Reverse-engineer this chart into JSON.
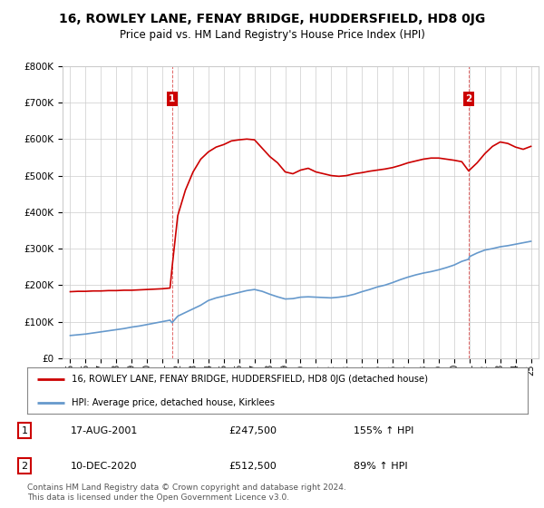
{
  "title": "16, ROWLEY LANE, FENAY BRIDGE, HUDDERSFIELD, HD8 0JG",
  "subtitle": "Price paid vs. HM Land Registry's House Price Index (HPI)",
  "title_fontsize": 10,
  "subtitle_fontsize": 8.5,
  "ylim": [
    0,
    800000
  ],
  "yticks": [
    0,
    100000,
    200000,
    300000,
    400000,
    500000,
    600000,
    700000,
    800000
  ],
  "ytick_labels": [
    "£0",
    "£100K",
    "£200K",
    "£300K",
    "£400K",
    "£500K",
    "£600K",
    "£700K",
    "£800K"
  ],
  "xlim_start": 1994.5,
  "xlim_end": 2025.5,
  "sale1_year": 2001.63,
  "sale1_price": 247500,
  "sale2_year": 2020.95,
  "sale2_price": 512500,
  "red_color": "#cc0000",
  "blue_color": "#6699cc",
  "legend_label_red": "16, ROWLEY LANE, FENAY BRIDGE, HUDDERSFIELD, HD8 0JG (detached house)",
  "legend_label_blue": "HPI: Average price, detached house, Kirklees",
  "annotation1_num": "1",
  "annotation1_date": "17-AUG-2001",
  "annotation1_price": "£247,500",
  "annotation1_hpi": "155% ↑ HPI",
  "annotation2_num": "2",
  "annotation2_date": "10-DEC-2020",
  "annotation2_price": "£512,500",
  "annotation2_hpi": "89% ↑ HPI",
  "footer": "Contains HM Land Registry data © Crown copyright and database right 2024.\nThis data is licensed under the Open Government Licence v3.0.",
  "bg_color": "#ffffff",
  "grid_color": "#cccccc",
  "hpi_years": [
    1995.0,
    1995.5,
    1996.0,
    1996.5,
    1997.0,
    1997.5,
    1998.0,
    1998.5,
    1999.0,
    1999.5,
    2000.0,
    2000.5,
    2001.0,
    2001.5,
    2001.63,
    2002.0,
    2002.5,
    2003.0,
    2003.5,
    2004.0,
    2004.5,
    2005.0,
    2005.5,
    2006.0,
    2006.5,
    2007.0,
    2007.5,
    2008.0,
    2008.5,
    2009.0,
    2009.5,
    2010.0,
    2010.5,
    2011.0,
    2011.5,
    2012.0,
    2012.5,
    2013.0,
    2013.5,
    2014.0,
    2014.5,
    2015.0,
    2015.5,
    2016.0,
    2016.5,
    2017.0,
    2017.5,
    2018.0,
    2018.5,
    2019.0,
    2019.5,
    2020.0,
    2020.5,
    2020.95,
    2021.0,
    2021.5,
    2022.0,
    2022.5,
    2023.0,
    2023.5,
    2024.0,
    2024.5,
    2025.0
  ],
  "hpi_vals": [
    62000,
    64000,
    66000,
    69000,
    72000,
    75000,
    78000,
    81000,
    85000,
    88000,
    92000,
    96000,
    100000,
    104000,
    97000,
    115000,
    125000,
    135000,
    145000,
    158000,
    165000,
    170000,
    175000,
    180000,
    185000,
    188000,
    183000,
    175000,
    168000,
    162000,
    163000,
    167000,
    168000,
    167000,
    166000,
    165000,
    167000,
    170000,
    175000,
    182000,
    188000,
    195000,
    200000,
    207000,
    215000,
    222000,
    228000,
    233000,
    237000,
    242000,
    248000,
    255000,
    265000,
    271000,
    278000,
    288000,
    296000,
    300000,
    305000,
    308000,
    312000,
    316000,
    320000
  ],
  "red_years": [
    1995.0,
    1995.5,
    1996.0,
    1996.5,
    1997.0,
    1997.5,
    1998.0,
    1998.5,
    1999.0,
    1999.5,
    2000.0,
    2000.5,
    2001.0,
    2001.5,
    2001.63,
    2002.0,
    2002.5,
    2003.0,
    2003.5,
    2004.0,
    2004.5,
    2005.0,
    2005.5,
    2006.0,
    2006.5,
    2007.0,
    2007.5,
    2008.0,
    2008.5,
    2009.0,
    2009.5,
    2010.0,
    2010.5,
    2011.0,
    2011.5,
    2012.0,
    2012.5,
    2013.0,
    2013.5,
    2014.0,
    2014.5,
    2015.0,
    2015.5,
    2016.0,
    2016.5,
    2017.0,
    2017.5,
    2018.0,
    2018.5,
    2019.0,
    2019.5,
    2020.0,
    2020.5,
    2020.95,
    2021.0,
    2021.5,
    2022.0,
    2022.5,
    2023.0,
    2023.5,
    2024.0,
    2024.5,
    2025.0
  ],
  "red_vals": [
    182000,
    183000,
    183000,
    184000,
    184000,
    185000,
    185000,
    186000,
    186000,
    187000,
    188000,
    189000,
    190000,
    192000,
    247500,
    390000,
    460000,
    510000,
    545000,
    565000,
    578000,
    585000,
    595000,
    598000,
    600000,
    598000,
    575000,
    552000,
    535000,
    510000,
    505000,
    515000,
    520000,
    510000,
    505000,
    500000,
    498000,
    500000,
    505000,
    508000,
    512000,
    515000,
    518000,
    522000,
    528000,
    535000,
    540000,
    545000,
    548000,
    548000,
    545000,
    542000,
    538000,
    512500,
    515000,
    535000,
    560000,
    580000,
    592000,
    588000,
    578000,
    572000,
    580000
  ]
}
